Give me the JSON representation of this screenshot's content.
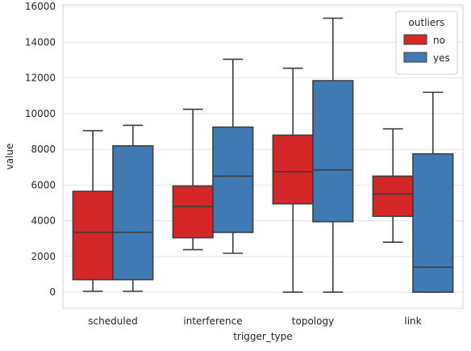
{
  "chart_data": {
    "type": "boxplot",
    "title": "",
    "xlabel": "trigger_type",
    "ylabel": "value",
    "categories": [
      "scheduled",
      "interference",
      "topology",
      "link"
    ],
    "ylim": [
      -900,
      16100
    ],
    "yticks": [
      0,
      2000,
      4000,
      6000,
      8000,
      10000,
      12000,
      14000,
      16000
    ],
    "ytick_labels": [
      "0",
      "2000",
      "4000",
      "6000",
      "8000",
      "10000",
      "12000",
      "14000",
      "16000"
    ],
    "grid": true,
    "legend": {
      "title": "outliers",
      "position": "top-right"
    },
    "series": [
      {
        "name": "no",
        "color": "#d62728",
        "boxes": [
          {
            "whisker_low": 50,
            "q1": 700,
            "median": 3350,
            "q3": 5650,
            "whisker_high": 9050
          },
          {
            "whisker_low": 2380,
            "q1": 3050,
            "median": 4800,
            "q3": 5950,
            "whisker_high": 10250
          },
          {
            "whisker_low": 0,
            "q1": 4950,
            "median": 6750,
            "q3": 8800,
            "whisker_high": 12550
          },
          {
            "whisker_low": 2800,
            "q1": 4250,
            "median": 5500,
            "q3": 6500,
            "whisker_high": 9150
          }
        ]
      },
      {
        "name": "yes",
        "color": "#3f7ab5",
        "boxes": [
          {
            "whisker_low": 50,
            "q1": 700,
            "median": 3350,
            "q3": 8200,
            "whisker_high": 9350
          },
          {
            "whisker_low": 2180,
            "q1": 3350,
            "median": 6500,
            "q3": 9250,
            "whisker_high": 13050
          },
          {
            "whisker_low": 0,
            "q1": 3950,
            "median": 6850,
            "q3": 11850,
            "whisker_high": 15350
          },
          {
            "whisker_low": 0,
            "q1": 0,
            "median": 1400,
            "q3": 7750,
            "whisker_high": 11200
          }
        ]
      }
    ]
  }
}
